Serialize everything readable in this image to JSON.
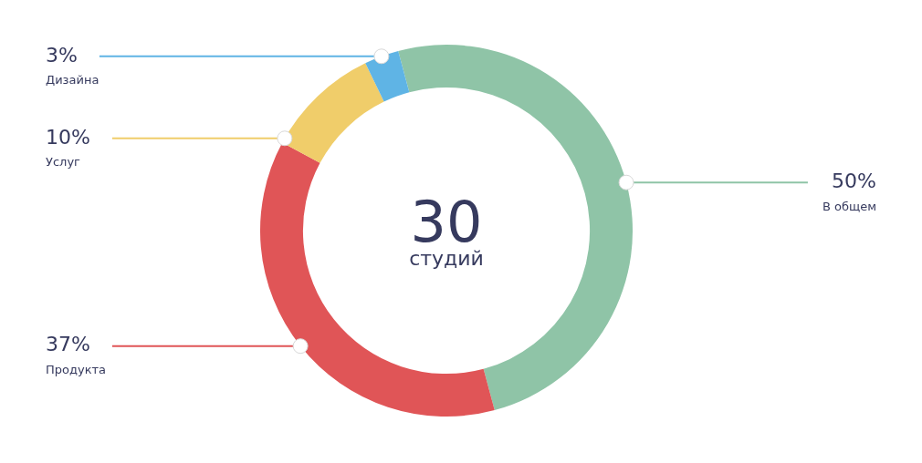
{
  "chart_data": {
    "type": "donut",
    "title": "30",
    "subtitle": "студий",
    "categories": [
      "В общем",
      "Продукта",
      "Услуг",
      "Дизайна"
    ],
    "values": [
      50,
      37,
      10,
      3
    ],
    "colors": [
      "#8fc4a7",
      "#e05557",
      "#f0cd6a",
      "#5fb4e5"
    ],
    "value_labels": [
      "50%",
      "37%",
      "10%",
      "3%"
    ],
    "legend": false
  }
}
